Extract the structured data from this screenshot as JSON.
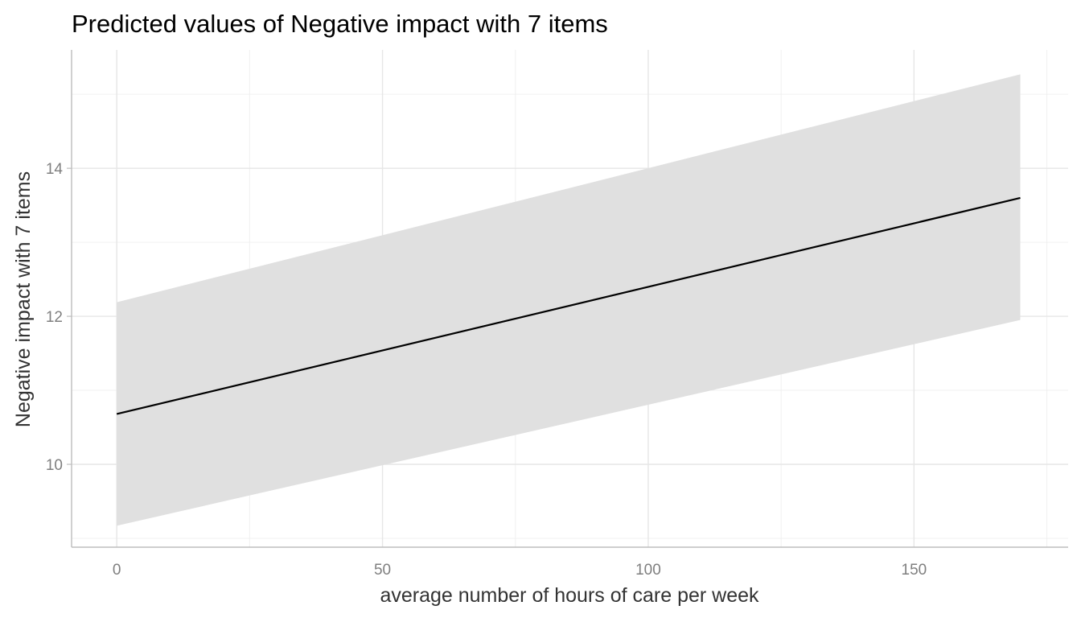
{
  "chart_data": {
    "type": "line",
    "title": "Predicted values of Negative impact with 7 items",
    "xlabel": "average number of hours of care per week",
    "ylabel": "Negative impact with 7 items",
    "xlim": [
      -8.5,
      179
    ],
    "ylim": [
      8.88,
      15.6
    ],
    "x_ticks": [
      0,
      50,
      100,
      150
    ],
    "x_tick_labels": [
      "0",
      "50",
      "100",
      "150"
    ],
    "x_minor_ticks": [
      25,
      75,
      125,
      175
    ],
    "y_ticks": [
      10,
      12,
      14
    ],
    "y_tick_labels": [
      "10",
      "12",
      "14"
    ],
    "y_minor_ticks": [
      9,
      11,
      13,
      15
    ],
    "grid": true,
    "series": [
      {
        "x": [
          0,
          170
        ],
        "y": [
          10.68,
          13.6
        ],
        "lower": [
          9.17,
          11.95
        ],
        "upper": [
          12.19,
          15.27
        ]
      }
    ],
    "colors": {
      "line": "#000000",
      "ribbon": "#e0e0e0",
      "grid": "#e6e6e6",
      "axis": "#bdbdbd",
      "tick_text": "#7f7f7f",
      "axis_title": "#333333"
    }
  }
}
